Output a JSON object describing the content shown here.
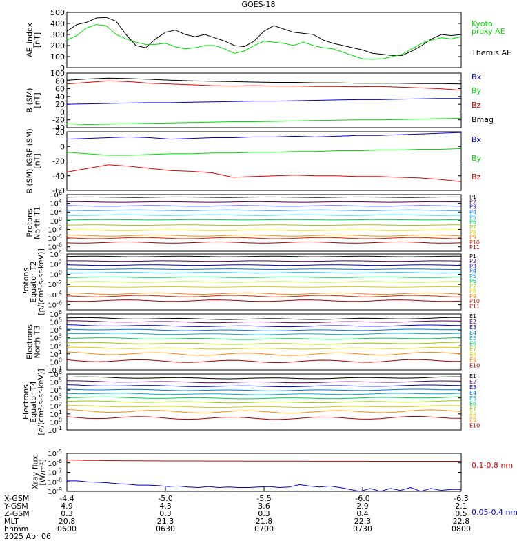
{
  "title": "GOES-18",
  "colors": {
    "black": "#000000",
    "green": "#00dd00",
    "blue": "#0000cc",
    "red": "#dd0000"
  },
  "chart_data": [
    {
      "id": "ae",
      "type": "line",
      "ylabel": [
        "AE_index",
        "[nT]"
      ],
      "ylim": [
        0,
        500
      ],
      "yticks": [
        "0",
        "100",
        "200",
        "300",
        "400",
        "500"
      ],
      "legend": [
        {
          "text": "Kyoto",
          "color": "#00dd00"
        },
        {
          "text": "proxy AE",
          "color": "#00dd00"
        },
        {
          "text": "Themis AE",
          "color": "#000000"
        }
      ],
      "series": [
        {
          "name": "Themis AE",
          "color": "#000000",
          "values": [
            330,
            390,
            410,
            450,
            455,
            420,
            300,
            200,
            180,
            260,
            320,
            340,
            300,
            280,
            300,
            270,
            240,
            200,
            190,
            240,
            330,
            380,
            350,
            320,
            310,
            300,
            250,
            220,
            200,
            180,
            160,
            130,
            120,
            110,
            110,
            150,
            200,
            260,
            300,
            290,
            300
          ]
        },
        {
          "name": "Kyoto proxy AE",
          "color": "#00dd00",
          "values": [
            250,
            290,
            360,
            390,
            380,
            300,
            260,
            230,
            210,
            210,
            220,
            190,
            170,
            180,
            200,
            200,
            170,
            130,
            150,
            200,
            240,
            230,
            220,
            200,
            230,
            200,
            180,
            170,
            140,
            110,
            80,
            75,
            80,
            100,
            120,
            170,
            220,
            250,
            270,
            260,
            280
          ]
        }
      ]
    },
    {
      "id": "b-sm",
      "type": "line",
      "ylabel": [
        "B (SM)",
        "[nT]"
      ],
      "ylim": [
        -40,
        100
      ],
      "yticks": [
        "-40",
        "-20",
        "0",
        "20",
        "40",
        "60",
        "80",
        "100"
      ],
      "legend": [
        {
          "text": "Bx",
          "color": "#0000cc"
        },
        {
          "text": "By",
          "color": "#00dd00"
        },
        {
          "text": "Bz",
          "color": "#dd0000"
        },
        {
          "text": "Bmag",
          "color": "#000000"
        }
      ],
      "series": [
        {
          "name": "Bmag",
          "color": "#000000",
          "values": [
            82,
            85,
            87,
            86,
            84,
            82,
            80,
            79,
            78,
            77,
            76,
            76,
            75,
            75,
            74,
            74,
            74,
            73,
            73,
            72
          ]
        },
        {
          "name": "Bz",
          "color": "#dd0000",
          "values": [
            72,
            76,
            80,
            78,
            74,
            72,
            70,
            68,
            67,
            68,
            67,
            67,
            66,
            66,
            65,
            66,
            64,
            62,
            60,
            56
          ]
        },
        {
          "name": "Bx",
          "color": "#0000cc",
          "values": [
            20,
            21,
            22,
            23,
            24,
            24,
            25,
            26,
            27,
            28,
            28,
            29,
            30,
            31,
            32,
            32,
            33,
            34,
            35,
            35
          ]
        },
        {
          "name": "By",
          "color": "#00dd00",
          "values": [
            -30,
            -32,
            -31,
            -30,
            -29,
            -28,
            -27,
            -26,
            -25,
            -25,
            -24,
            -23,
            -22,
            -21,
            -20,
            -20,
            -19,
            -18,
            -17,
            -16
          ]
        }
      ]
    },
    {
      "id": "b-igrf",
      "type": "line",
      "ylabel": [
        "B (SM)-IGRF (SM)",
        "[nT]"
      ],
      "ylim": [
        -60,
        20
      ],
      "yticks": [
        "-60",
        "-40",
        "-20",
        "0",
        "20"
      ],
      "legend": [
        {
          "text": "Bx",
          "color": "#0000cc"
        },
        {
          "text": "By",
          "color": "#00dd00"
        },
        {
          "text": "Bz",
          "color": "#dd0000"
        }
      ],
      "series": [
        {
          "name": "Bx",
          "color": "#0000cc",
          "values": [
            10,
            11,
            12,
            13,
            12,
            10,
            11,
            12,
            12,
            13,
            13,
            14,
            13,
            14,
            15,
            15,
            16,
            17,
            18,
            19
          ]
        },
        {
          "name": "By",
          "color": "#00dd00",
          "values": [
            -8,
            -10,
            -12,
            -12,
            -11,
            -10,
            -10,
            -9,
            -9,
            -8,
            -8,
            -7,
            -7,
            -6,
            -6,
            -5,
            -5,
            -4,
            -4,
            -3
          ]
        },
        {
          "name": "Bz",
          "color": "#dd0000",
          "values": [
            -35,
            -30,
            -25,
            -27,
            -30,
            -33,
            -34,
            -36,
            -42,
            -41,
            -40,
            -39,
            -40,
            -40,
            -41,
            -41,
            -42,
            -43,
            -45,
            -48
          ]
        }
      ]
    },
    {
      "id": "protons-t1",
      "type": "line",
      "log": true,
      "ylabel": [
        "Protons",
        "North T1"
      ],
      "ylim_exp": [
        -7,
        6
      ],
      "yticks": [
        {
          "exp": 6
        },
        {
          "exp": 4
        },
        {
          "exp": 2
        },
        {
          "exp": 0
        },
        {
          "exp": -2
        },
        {
          "exp": -4
        },
        {
          "exp": -6
        }
      ],
      "channels": [
        {
          "label": "P1",
          "color": "#000000",
          "level": 5.4
        },
        {
          "label": "P2",
          "color": "#550055",
          "level": 4.3
        },
        {
          "label": "P3",
          "color": "#0000cc",
          "level": 3.4
        },
        {
          "label": "P4",
          "color": "#0077dd",
          "level": 2.4
        },
        {
          "label": "P5",
          "color": "#00aadd",
          "level": 1.3
        },
        {
          "label": "P6",
          "color": "#00cc55",
          "level": 0.2
        },
        {
          "label": "P7",
          "color": "#99cc00",
          "level": -1.0
        },
        {
          "label": "P8",
          "color": "#ddcc00",
          "level": -2.2
        },
        {
          "label": "P9",
          "color": "#ff8800",
          "level": -3.4
        },
        {
          "label": "P10",
          "color": "#dd2200",
          "level": -4.0
        },
        {
          "label": "P11",
          "color": "#aa0000",
          "level": -5.0
        }
      ]
    },
    {
      "id": "protons-t2",
      "type": "line",
      "log": true,
      "ylabel": [
        "Protons",
        "Equator T2",
        "[p/(cm²-s-sr-keV)]"
      ],
      "ylim_exp": [
        -7,
        4
      ],
      "yticks": [
        {
          "exp": 4
        },
        {
          "exp": 2
        },
        {
          "exp": 0
        },
        {
          "exp": -2
        },
        {
          "exp": -4
        },
        {
          "exp": -6
        }
      ],
      "channels": [
        {
          "label": "P1",
          "color": "#000000",
          "level": 3.5
        },
        {
          "label": "P2",
          "color": "#550055",
          "level": 2.6
        },
        {
          "label": "P3",
          "color": "#0000cc",
          "level": 1.8
        },
        {
          "label": "P4",
          "color": "#0077dd",
          "level": 1.0
        },
        {
          "label": "P5",
          "color": "#00aadd",
          "level": 0.3
        },
        {
          "label": "P6",
          "color": "#00cc55",
          "level": -0.6
        },
        {
          "label": "P7",
          "color": "#99cc00",
          "level": -1.5
        },
        {
          "label": "P8",
          "color": "#ddcc00",
          "level": -2.5
        },
        {
          "label": "P9",
          "color": "#ff8800",
          "level": -3.8
        },
        {
          "label": "P10",
          "color": "#dd2200",
          "level": -4.3
        },
        {
          "label": "P11",
          "color": "#aa0000",
          "level": -5.2
        }
      ]
    },
    {
      "id": "electrons-t3",
      "type": "line",
      "log": true,
      "ylabel": [
        "Electrons",
        "North T3"
      ],
      "ylim_exp": [
        -1,
        6
      ],
      "yticks": [
        {
          "exp": 6
        },
        {
          "exp": 5
        },
        {
          "exp": 4
        },
        {
          "exp": 3
        },
        {
          "exp": 2
        },
        {
          "exp": 1
        },
        {
          "exp": 0
        },
        {
          "exp": -1
        }
      ],
      "channels": [
        {
          "label": "E1",
          "color": "#000000",
          "level": 5.5
        },
        {
          "label": "E2",
          "color": "#550055",
          "level": 5.1
        },
        {
          "label": "E3",
          "color": "#0000cc",
          "level": 4.6
        },
        {
          "label": "E4",
          "color": "#0077dd",
          "level": 4.1
        },
        {
          "label": "E5",
          "color": "#00aadd",
          "level": 3.6
        },
        {
          "label": "E6",
          "color": "#00cc55",
          "level": 3.0
        },
        {
          "label": "E7",
          "color": "#99cc00",
          "level": 2.4
        },
        {
          "label": "E8",
          "color": "#ddcc00",
          "level": 1.8
        },
        {
          "label": "E9",
          "color": "#ff8800",
          "level": 1.1
        },
        {
          "label": "E10",
          "color": "#aa0000",
          "level": 0.2
        }
      ]
    },
    {
      "id": "electrons-t4",
      "type": "line",
      "log": true,
      "ylabel": [
        "Electrons",
        "Equator T4",
        "[e/(cm²-s-sr-keV)]"
      ],
      "ylim_exp": [
        -1,
        6
      ],
      "yticks": [
        {
          "exp": 6
        },
        {
          "exp": 5
        },
        {
          "exp": 4
        },
        {
          "exp": 3
        },
        {
          "exp": 2
        },
        {
          "exp": 1
        },
        {
          "exp": 0
        },
        {
          "exp": -1
        }
      ],
      "channels": [
        {
          "label": "E1",
          "color": "#000000",
          "level": 5.6
        },
        {
          "label": "E2",
          "color": "#550055",
          "level": 5.1
        },
        {
          "label": "E3",
          "color": "#0000cc",
          "level": 4.6
        },
        {
          "label": "E4",
          "color": "#0077dd",
          "level": 4.1
        },
        {
          "label": "E5",
          "color": "#00aadd",
          "level": 3.6
        },
        {
          "label": "E6",
          "color": "#00cc55",
          "level": 3.1
        },
        {
          "label": "E7",
          "color": "#99cc00",
          "level": 2.6
        },
        {
          "label": "E8",
          "color": "#ddcc00",
          "level": 2.0
        },
        {
          "label": "E9",
          "color": "#ff8800",
          "level": 1.4
        },
        {
          "label": "E10",
          "color": "#aa0000",
          "level": 0.6
        }
      ]
    },
    {
      "id": "xray",
      "type": "line",
      "log": true,
      "ylabel": [
        "Xray flux",
        "[W/m²]"
      ],
      "ylim_exp": [
        -9,
        -5
      ],
      "yticks": [
        {
          "exp": -5
        },
        {
          "exp": -6
        },
        {
          "exp": -7
        },
        {
          "exp": -8
        },
        {
          "exp": -9
        }
      ],
      "legend": [
        {
          "text": "0.1-0.8 nm",
          "color": "#dd0000"
        },
        {
          "text": "0.05-0.4 nm",
          "color": "#0000cc"
        }
      ],
      "series": [
        {
          "name": "0.1-0.8 nm",
          "color": "#dd0000",
          "values_exp": [
            -5.7,
            -5.72,
            -5.74,
            -5.75,
            -5.76,
            -5.77,
            -5.78,
            -5.78,
            -5.79,
            -5.79,
            -5.8,
            -5.8,
            -5.8,
            -5.8,
            -5.81,
            -5.81,
            -5.81,
            -5.81,
            -5.82,
            -5.82,
            -5.82,
            -5.82,
            -5.82,
            -5.82,
            -5.83,
            -5.83,
            -5.83,
            -5.83,
            -5.83,
            -5.83,
            -5.84,
            -5.84,
            -5.84,
            -5.84,
            -5.84,
            -5.84,
            -5.84,
            -5.84,
            -5.84,
            -5.84
          ]
        },
        {
          "name": "0.05-0.4 nm",
          "color": "#0000cc",
          "values_exp": [
            -7.9,
            -7.9,
            -8.0,
            -8.05,
            -8.1,
            -8.2,
            -8.25,
            -8.35,
            -8.35,
            -8.4,
            -8.5,
            -8.45,
            -8.55,
            -8.6,
            -8.5,
            -8.6,
            -8.55,
            -8.6,
            -8.6,
            -8.55,
            -8.5,
            -8.6,
            -8.55,
            -8.3,
            -8.45,
            -8.55,
            -8.45,
            -8.6,
            -8.8,
            -9.0,
            -8.7,
            -9.0,
            -8.7,
            -8.9,
            -8.6,
            -9.0,
            -8.7,
            -8.9,
            -8.8,
            -8.8
          ]
        }
      ]
    }
  ],
  "bottom_axis": {
    "row_labels": [
      "X-GSM",
      "Y-GSM",
      "Z-GSM",
      "MLT",
      "hhmm",
      "2025 Apr 06"
    ],
    "columns": [
      [
        "-4.4",
        "4.9",
        "0.3",
        "20.8",
        "0600"
      ],
      [
        "-5.0",
        "4.3",
        "0.3",
        "21.3",
        "0630"
      ],
      [
        "-5.5",
        "3.6",
        "0.3",
        "21.8",
        "0700"
      ],
      [
        "-6.0",
        "2.9",
        "0.4",
        "22.3",
        "0730"
      ],
      [
        "-6.3",
        "2.1",
        "0.5",
        "22.8",
        "0800"
      ]
    ]
  }
}
